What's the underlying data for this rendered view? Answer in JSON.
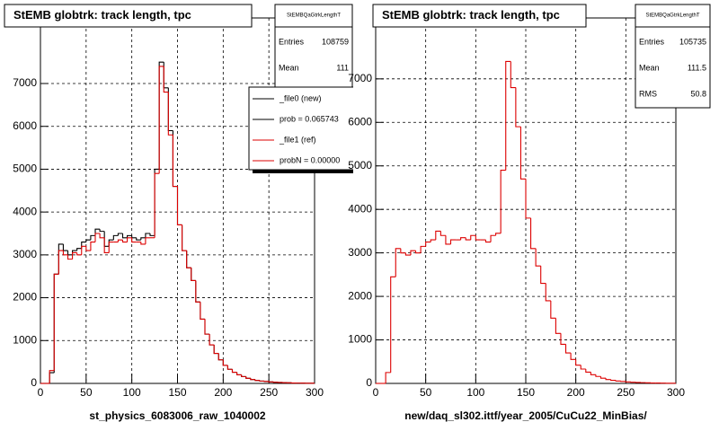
{
  "chart_data": [
    {
      "type": "histogram",
      "title": "StEMB globtrk: track length, tpc",
      "x_label": "st_physics_6083006_raw_1040002",
      "bins": [
        0,
        5,
        10,
        15,
        20,
        25,
        30,
        35,
        40,
        45,
        50,
        55,
        60,
        65,
        70,
        75,
        80,
        85,
        90,
        95,
        100,
        105,
        110,
        115,
        120,
        125,
        130,
        135,
        140,
        145,
        150,
        155,
        160,
        165,
        170,
        175,
        180,
        185,
        190,
        195,
        200,
        205,
        210,
        215,
        220,
        225,
        230,
        235,
        240,
        245,
        250,
        255,
        260,
        265,
        270,
        275,
        280,
        285,
        290,
        295,
        300
      ],
      "series": [
        {
          "name": "_file0 (new)",
          "color": "#000000",
          "values": [
            0,
            0,
            250,
            2550,
            3250,
            3100,
            3000,
            3100,
            3150,
            3300,
            3350,
            3450,
            3600,
            3550,
            3200,
            3350,
            3450,
            3500,
            3400,
            3450,
            3400,
            3350,
            3400,
            3500,
            3450,
            5000,
            7500,
            6900,
            5900,
            4600,
            3700,
            3100,
            2700,
            2400,
            1900,
            1500,
            1150,
            900,
            700,
            550,
            420,
            330,
            260,
            200,
            160,
            120,
            90,
            70,
            55,
            45,
            35,
            28,
            22,
            18,
            14,
            10,
            8,
            6,
            4,
            3
          ]
        },
        {
          "name": "_file1 (ref)",
          "color": "#dd0000",
          "values": [
            0,
            0,
            300,
            2550,
            3100,
            3000,
            2900,
            3050,
            3000,
            3200,
            3100,
            3300,
            3500,
            3400,
            3050,
            3300,
            3300,
            3350,
            3300,
            3400,
            3300,
            3300,
            3250,
            3400,
            3400,
            4900,
            7400,
            6800,
            5800,
            4600,
            3700,
            3100,
            2700,
            2400,
            1900,
            1500,
            1150,
            900,
            700,
            550,
            420,
            330,
            260,
            200,
            160,
            120,
            90,
            70,
            55,
            45,
            35,
            28,
            22,
            18,
            14,
            10,
            8,
            6,
            4,
            3
          ]
        }
      ],
      "legend_notes": [
        "prob = 0.065743",
        "probN = 0.00000"
      ],
      "stats": {
        "title": "StEMBQaGtrkLengthT",
        "rows": [
          {
            "label": "Entries",
            "value": 108759
          },
          {
            "label": "Mean",
            "value": 111
          }
        ]
      },
      "xlim": [
        0,
        300
      ],
      "xticks": [
        0,
        50,
        100,
        150,
        200,
        250,
        300
      ],
      "ylim": [
        0,
        8530
      ],
      "yticks": [
        0,
        1000,
        2000,
        3000,
        4000,
        5000,
        6000,
        7000
      ],
      "grid": true
    },
    {
      "type": "histogram",
      "title": "StEMB globtrk: track length, tpc",
      "x_label": "new/daq_sl302.ittf/year_2005/CuCu22_MinBias/",
      "bins": [
        0,
        5,
        10,
        15,
        20,
        25,
        30,
        35,
        40,
        45,
        50,
        55,
        60,
        65,
        70,
        75,
        80,
        85,
        90,
        95,
        100,
        105,
        110,
        115,
        120,
        125,
        130,
        135,
        140,
        145,
        150,
        155,
        160,
        165,
        170,
        175,
        180,
        185,
        190,
        195,
        200,
        205,
        210,
        215,
        220,
        225,
        230,
        235,
        240,
        245,
        250,
        255,
        260,
        265,
        270,
        275,
        280,
        285,
        290,
        295,
        300
      ],
      "series": [
        {
          "color": "#dd0000",
          "values": [
            0,
            0,
            250,
            2450,
            3100,
            3000,
            2950,
            3050,
            3000,
            3150,
            3250,
            3300,
            3500,
            3400,
            3200,
            3300,
            3300,
            3350,
            3300,
            3400,
            3300,
            3300,
            3250,
            3400,
            3450,
            4900,
            7400,
            6800,
            5900,
            4700,
            3800,
            3100,
            2700,
            2300,
            1900,
            1500,
            1150,
            900,
            700,
            550,
            420,
            330,
            260,
            200,
            160,
            120,
            90,
            70,
            55,
            45,
            35,
            28,
            22,
            18,
            14,
            10,
            8,
            6,
            4,
            3
          ]
        }
      ],
      "stats": {
        "title": "StEMBQaGtrkLengthT",
        "rows": [
          {
            "label": "Entries",
            "value": 105735
          },
          {
            "label": "Mean",
            "value": 111.5
          },
          {
            "label": "RMS",
            "value": 50.8
          }
        ]
      },
      "xlim": [
        0,
        300
      ],
      "xticks": [
        0,
        50,
        100,
        150,
        200,
        250,
        300
      ],
      "ylim": [
        0,
        8400
      ],
      "yticks": [
        0,
        1000,
        2000,
        3000,
        4000,
        5000,
        6000,
        7000
      ],
      "grid": true
    }
  ]
}
